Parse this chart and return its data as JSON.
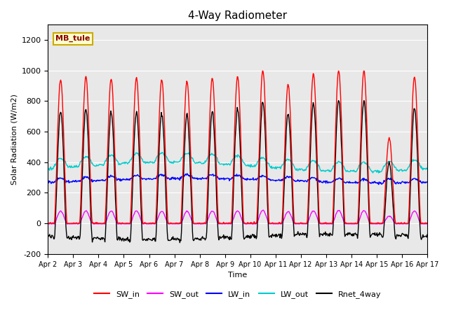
{
  "title": "4-Way Radiometer",
  "xlabel": "Time",
  "ylabel": "Solar Radiation (W/m2)",
  "ylim": [
    -200,
    1300
  ],
  "yticks": [
    -200,
    0,
    200,
    400,
    600,
    800,
    1000,
    1200
  ],
  "x_labels": [
    "Apr 2",
    "Apr 3",
    "Apr 4",
    "Apr 5",
    "Apr 6",
    "Apr 7",
    "Apr 8",
    "Apr 9",
    "Apr 10",
    "Apr 11",
    "Apr 12",
    "Apr 13",
    "Apr 14",
    "Apr 15",
    "Apr 16",
    "Apr 17"
  ],
  "num_days": 15,
  "station_label": "MB_tule",
  "colors": {
    "SW_in": "#ff0000",
    "SW_out": "#ff00ff",
    "LW_in": "#0000ff",
    "LW_out": "#00cccc",
    "Rnet_4way": "#000000"
  },
  "background_color": "#e8e8e8",
  "sw_in_peaks": [
    940,
    960,
    950,
    950,
    940,
    930,
    950,
    960,
    1000,
    910,
    980,
    1000,
    1000,
    560,
    960
  ],
  "rnet_night": -100,
  "lw_in_base": 285,
  "lw_out_base": 385,
  "figsize": [
    6.4,
    4.8
  ],
  "dpi": 100
}
